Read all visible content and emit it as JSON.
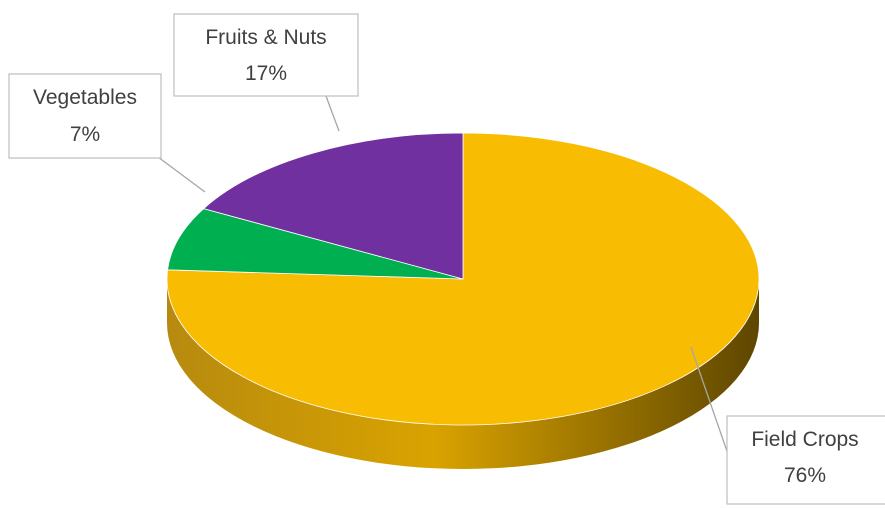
{
  "chart_data": {
    "type": "pie",
    "style": "3d",
    "slices": [
      {
        "name": "Field Crops",
        "value": 76,
        "percent_label": "76%",
        "color": "#F8BC02",
        "side_color_light": "#D9A300",
        "side_color_dark": "#5E4600"
      },
      {
        "name": "Vegetables",
        "value": 7,
        "percent_label": "7%",
        "color": "#00B050",
        "side_color_light": "#00A047",
        "side_color_dark": "#006B2E"
      },
      {
        "name": "Fruits & Nuts",
        "value": 17,
        "percent_label": "17%",
        "color": "#7030A0",
        "side_color_light": "#5E2688",
        "side_color_dark": "#3F175C"
      }
    ],
    "legend": "none",
    "data_labels": "callouts with category name and percent"
  }
}
